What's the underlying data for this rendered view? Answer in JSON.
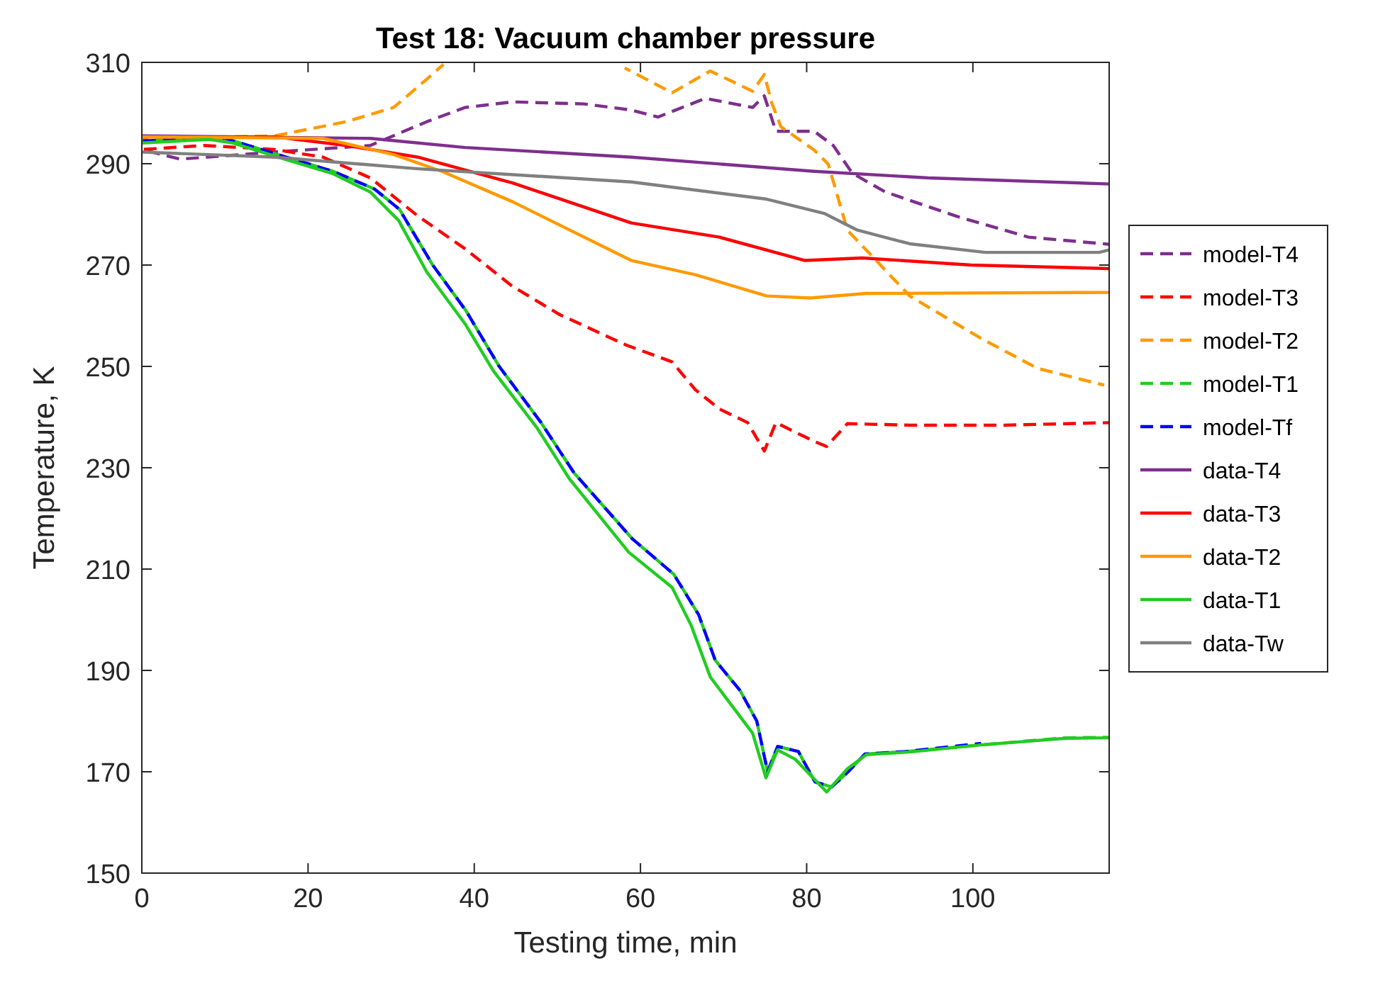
{
  "chart_data": {
    "type": "line",
    "title": "Test 18: Vacuum chamber pressure",
    "xlabel": "Testing time, min",
    "ylabel": "Temperature, K",
    "xlim": [
      0,
      116.4
    ],
    "ylim": [
      150,
      310
    ],
    "xticks": [
      0,
      20,
      40,
      60,
      80,
      100
    ],
    "yticks": [
      150,
      170,
      190,
      210,
      230,
      250,
      270,
      290,
      310
    ],
    "grid": false,
    "legend": "right",
    "series": [
      {
        "name": "model-T4",
        "color": "#7e2f8e",
        "line_style": "dashed",
        "x": [
          0,
          4.6,
          16,
          27.5,
          34.3,
          38.9,
          44.6,
          53.2,
          58.9,
          62.1,
          67.8,
          73.5,
          74.9,
          76.3,
          80.9,
          83.2,
          85.5,
          89.5,
          98.1,
          106.7,
          116.4
        ],
        "values": [
          292.8,
          290.9,
          292.3,
          293.6,
          298.3,
          301.1,
          302.2,
          301.8,
          300.6,
          299.2,
          302.9,
          301.1,
          303.4,
          296.4,
          296.4,
          293.6,
          288.1,
          284.4,
          279.6,
          275.5,
          274.1
        ]
      },
      {
        "name": "model-T3",
        "color": "#ff0000",
        "line_style": "dashed",
        "x": [
          0,
          7.5,
          16,
          21.8,
          27.5,
          33.2,
          38.9,
          44.6,
          50.3,
          58.3,
          59.8,
          63.8,
          66.6,
          69.5,
          72.9,
          74.9,
          76.3,
          80.9,
          82.4,
          84.9,
          92.4,
          103.8,
          116.4
        ],
        "values": [
          292.8,
          293.6,
          292.8,
          291.3,
          287.2,
          279.7,
          273.2,
          265.8,
          260.2,
          254.2,
          253.3,
          250.9,
          245.4,
          241.6,
          238.9,
          233.3,
          238.9,
          235.2,
          234.2,
          238.7,
          238.4,
          238.4,
          238.9
        ]
      },
      {
        "name": "model-T2",
        "color": "#ff9a00",
        "line_style": "dashed",
        "x": [
          0,
          16,
          24.6,
          30.3,
          34.3,
          36.3,
          47,
          58.1,
          63.8,
          68.4,
          73.5,
          74.9,
          75.8,
          76.9,
          80.9,
          82.6,
          84.9,
          92.4,
          100.9,
          107.8,
          115.8
        ],
        "values": [
          295,
          295.5,
          298.3,
          301.1,
          306.7,
          309.6,
          null,
          308.9,
          304,
          308.3,
          304.3,
          307.6,
          302,
          297.3,
          292.7,
          289.9,
          276.9,
          263.9,
          255.6,
          249.6,
          246.3
        ]
      },
      {
        "name": "model-T1",
        "color": "#22cc22",
        "line_style": "dashed",
        "x": [
          0,
          10,
          17,
          23,
          28,
          31,
          35,
          39,
          43,
          48,
          52,
          59,
          64,
          67,
          69,
          72,
          74,
          75.3,
          76.5,
          79,
          81,
          83,
          85,
          87,
          92,
          101,
          111,
          116.4
        ],
        "values": [
          294.5,
          295,
          291.5,
          288.5,
          285,
          281,
          270,
          261,
          250,
          239,
          229,
          216,
          209,
          201,
          192,
          186,
          180,
          170,
          175,
          174,
          168,
          167,
          170,
          173.5,
          174,
          175.3,
          176.7,
          176.8
        ]
      },
      {
        "name": "model-Tf",
        "color": "#0000ff",
        "line_style": "dashed",
        "x": [
          0,
          10,
          17,
          23,
          28,
          31,
          35,
          39,
          43,
          48,
          52,
          59,
          64,
          67,
          69,
          72,
          74,
          75.3,
          76.5,
          79,
          81,
          83,
          85,
          87,
          92,
          101
        ],
        "values": [
          294.5,
          295,
          291.5,
          288.5,
          285,
          281,
          270,
          261,
          250,
          239,
          229,
          216,
          209,
          201,
          192,
          186,
          180,
          170,
          175,
          174,
          168,
          167,
          170,
          173.5,
          174,
          175.6
        ]
      },
      {
        "name": "data-T4",
        "color": "#7e2f8e",
        "line_style": "solid",
        "x": [
          0,
          27.5,
          38.9,
          58.9,
          80.9,
          94.6,
          116.4
        ],
        "values": [
          295.5,
          295,
          293.2,
          291.3,
          288.5,
          287.2,
          286
        ]
      },
      {
        "name": "data-T3",
        "color": "#ff0000",
        "line_style": "solid",
        "x": [
          0,
          16,
          24.6,
          33.2,
          44.6,
          58.9,
          69.5,
          79.8,
          86.7,
          99.8,
          116.4
        ],
        "values": [
          295.3,
          295.3,
          293.6,
          291.3,
          286.2,
          278.3,
          275.5,
          270.9,
          271.4,
          270,
          269.3
        ]
      },
      {
        "name": "data-T2",
        "color": "#ff9a00",
        "line_style": "solid",
        "x": [
          0,
          21.8,
          30.3,
          36.1,
          44.6,
          58.9,
          66.6,
          75.2,
          80.4,
          87.2,
          116.4
        ],
        "values": [
          295.3,
          295,
          291.8,
          288.5,
          282.5,
          270.9,
          268.1,
          263.9,
          263.5,
          264.4,
          264.6
        ]
      },
      {
        "name": "data-T1",
        "color": "#22cc22",
        "line_style": "solid",
        "x": [
          0,
          8,
          10.9,
          17.2,
          22.9,
          27.5,
          30.9,
          34.3,
          38.9,
          42.3,
          47.5,
          51.5,
          58.6,
          63.8,
          66.1,
          68.4,
          73.5,
          75.1,
          76.5,
          78.6,
          82.4,
          84.9,
          87.2,
          92.4,
          100.9,
          111.2,
          116.4
        ],
        "values": [
          294.1,
          294.8,
          294.1,
          290.9,
          288.1,
          284.4,
          278.8,
          268.6,
          258.4,
          249.1,
          238,
          227.7,
          213.3,
          206.4,
          198.9,
          188.7,
          177.6,
          168.8,
          174.3,
          172.5,
          166,
          170.6,
          173.4,
          173.9,
          175.3,
          176.6,
          176.7
        ]
      },
      {
        "name": "data-Tw",
        "color": "#808080",
        "line_style": "solid",
        "x": [
          0,
          16,
          33.2,
          58.9,
          75.2,
          82.1,
          86.1,
          92.4,
          101.5,
          115.2,
          116.4
        ],
        "values": [
          292.3,
          291.3,
          289,
          286.4,
          283,
          280.2,
          276.9,
          274.2,
          272.5,
          272.5,
          273
        ]
      }
    ]
  }
}
